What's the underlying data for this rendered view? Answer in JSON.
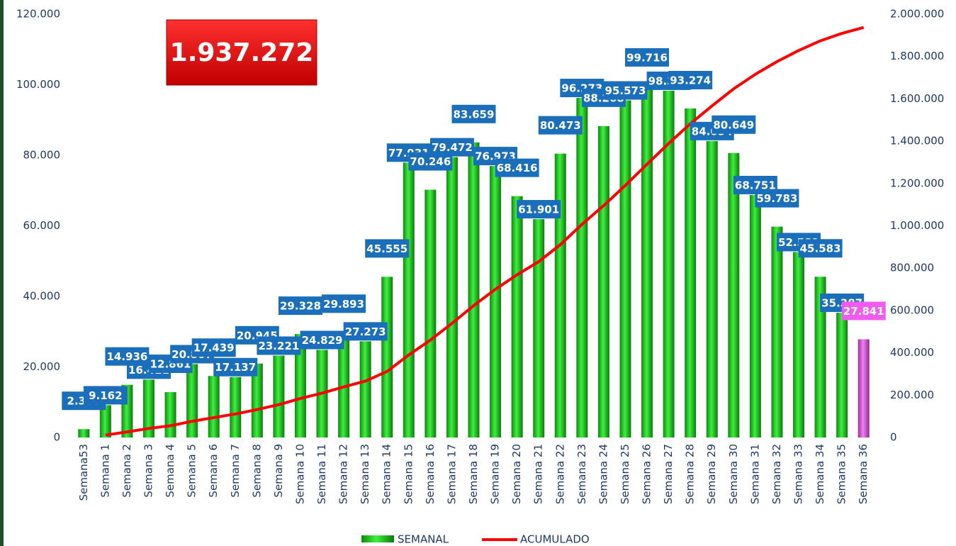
{
  "chart_data": {
    "type": "bar_line",
    "annotation": "1.937.272",
    "categories": [
      "Semana53",
      "Semana 1",
      "Semana 2",
      "Semana 3",
      "Semana 4",
      "Semana 5",
      "Semana 6",
      "Semana 7",
      "Semana 8",
      "Semana 9",
      "Semana 10",
      "Semana 11",
      "Semana 12",
      "Semana 13",
      "Semana 14",
      "Semana 15",
      "Semana 16",
      "Semana 17",
      "Semana 18",
      "Semana 19",
      "Semana 20",
      "Semana 21",
      "Semana 22",
      "Semana 23",
      "Semana 24",
      "Semana 25",
      "Semana 26",
      "Semana 27",
      "Semana 28",
      "Semana 29",
      "Semana 30",
      "Semana 31",
      "Semana 32",
      "Semana 33",
      "Semana 34",
      "Semana 35",
      "Semana 36"
    ],
    "series": [
      {
        "name": "SEMANAL",
        "type": "bar",
        "color": "#22c922",
        "highlight_color": "#d04cd0",
        "label_color": "#1b6fba",
        "highlight_label_color": "#f05cf0",
        "values": [
          2365,
          9162,
          14936,
          16411,
          12861,
          20807,
          17439,
          17137,
          20945,
          23221,
          29328,
          24829,
          29893,
          27273,
          45555,
          77931,
          70246,
          79472,
          83659,
          76973,
          68416,
          61901,
          80473,
          96273,
          88268,
          95573,
          99716,
          98306,
          93274,
          84054,
          80649,
          68751,
          59783,
          52581,
          45583,
          35387,
          27841
        ],
        "value_labels": [
          "2.365",
          "9.162",
          "14.936",
          "16.411",
          "12.861",
          "20.807",
          "17.439",
          "17.137",
          "20.945",
          "23.221",
          "29.328",
          "24.829",
          "29.893",
          "27.273",
          "45.555",
          "77.931",
          "70.246",
          "79.472",
          "83.659",
          "76.973",
          "68.416",
          "61.901",
          "80.473",
          "96.273",
          "88.268",
          "95.573",
          "99.716",
          "98.306",
          "93.274",
          "84.054",
          "80.649",
          "68.751",
          "59.783",
          "52.581",
          "45.583",
          "35.387",
          "27.841"
        ]
      },
      {
        "name": "ACUMULADO",
        "type": "line",
        "axis": "y2",
        "color": "#ff0000",
        "values": [
          null,
          11527,
          26463,
          42874,
          55735,
          76542,
          93981,
          111118,
          132063,
          155284,
          184612,
          209441,
          239334,
          266607,
          312162,
          390093,
          460339,
          539811,
          623470,
          700443,
          768859,
          830760,
          911233,
          1007506,
          1095774,
          1191347,
          1291063,
          1389369,
          1482643,
          1566697,
          1647346,
          1716097,
          1775880,
          1828461,
          1874044,
          1909431,
          1937272
        ]
      }
    ],
    "ylim": [
      0,
      120000
    ],
    "yticks": [
      {
        "value": 0,
        "label": "0"
      },
      {
        "value": 20000,
        "label": "20.000"
      },
      {
        "value": 40000,
        "label": "40.000"
      },
      {
        "value": 60000,
        "label": "60.000"
      },
      {
        "value": 80000,
        "label": "80.000"
      },
      {
        "value": 100000,
        "label": "100.000"
      },
      {
        "value": 120000,
        "label": "120.000"
      }
    ],
    "y2lim": [
      0,
      2000000
    ],
    "y2ticks": [
      {
        "value": 0,
        "label": "0"
      },
      {
        "value": 200000,
        "label": "200.000"
      },
      {
        "value": 400000,
        "label": "400.000"
      },
      {
        "value": 600000,
        "label": "600.000"
      },
      {
        "value": 800000,
        "label": "800.000"
      },
      {
        "value": 1000000,
        "label": "1.000.000"
      },
      {
        "value": 1200000,
        "label": "1.200.000"
      },
      {
        "value": 1400000,
        "label": "1.400.000"
      },
      {
        "value": 1600000,
        "label": "1.600.000"
      },
      {
        "value": 1800000,
        "label": "1.800.000"
      },
      {
        "value": 2000000,
        "label": "2.000.000"
      }
    ],
    "legend": "bottom"
  }
}
